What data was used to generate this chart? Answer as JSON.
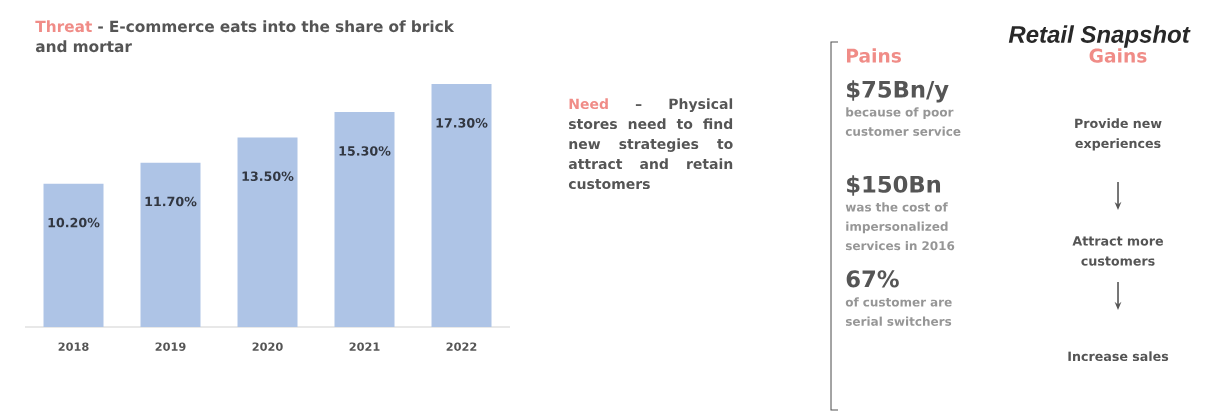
{
  "chart_data": [
    {
      "type": "other",
      "title": "Retail Snapshot"
    },
    {
      "type": "bar",
      "title": "Threat",
      "subtitle": "- E-commerce eats into the share of brick and mortar",
      "categories": [
        "2018",
        "2019",
        "2020",
        "2021",
        "2022"
      ],
      "values": [
        10.2,
        11.7,
        13.5,
        15.3,
        17.3
      ],
      "value_labels": [
        "10.20%",
        "11.70%",
        "13.50%",
        "15.30%",
        "17.30%"
      ],
      "color": "#aec4e6"
    },
    {
      "type": "other",
      "title": "Need",
      "subtitle": "– Physical stores need to find new strategies to attract and retain customers"
    },
    {
      "type": "other",
      "title": "Pains",
      "annotations": [
        "$75Bn/y",
        "because of poor customer service",
        "$150Bn",
        "was the cost of impersonalized services in 2016",
        "67%",
        "of customer are serial switchers"
      ]
    },
    {
      "type": "other",
      "title": "Gains",
      "annotations": [
        "Provide new experiences",
        "Attract more customers",
        "Increase sales"
      ]
    }
  ]
}
